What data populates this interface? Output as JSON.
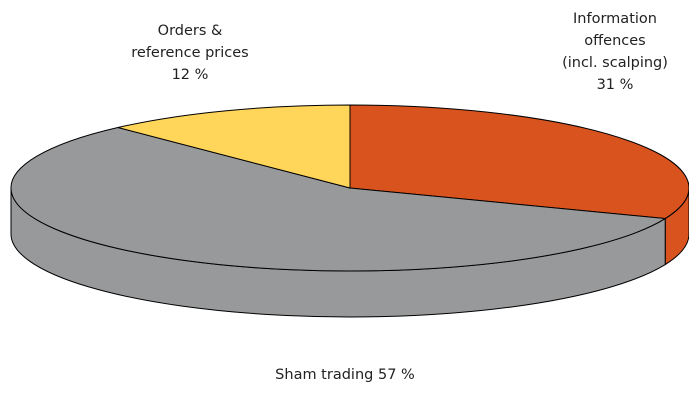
{
  "chart_data": {
    "type": "pie3d",
    "categories": [
      "Information\noffences\n(incl. scalping)",
      "Sham trading",
      "Orders &\nreference prices"
    ],
    "values": [
      31,
      57,
      12
    ],
    "value_labels": [
      "31 %",
      "57 %",
      "12 %"
    ],
    "colors": [
      "#d9531e",
      "#98999b",
      "#ffd55a"
    ]
  }
}
